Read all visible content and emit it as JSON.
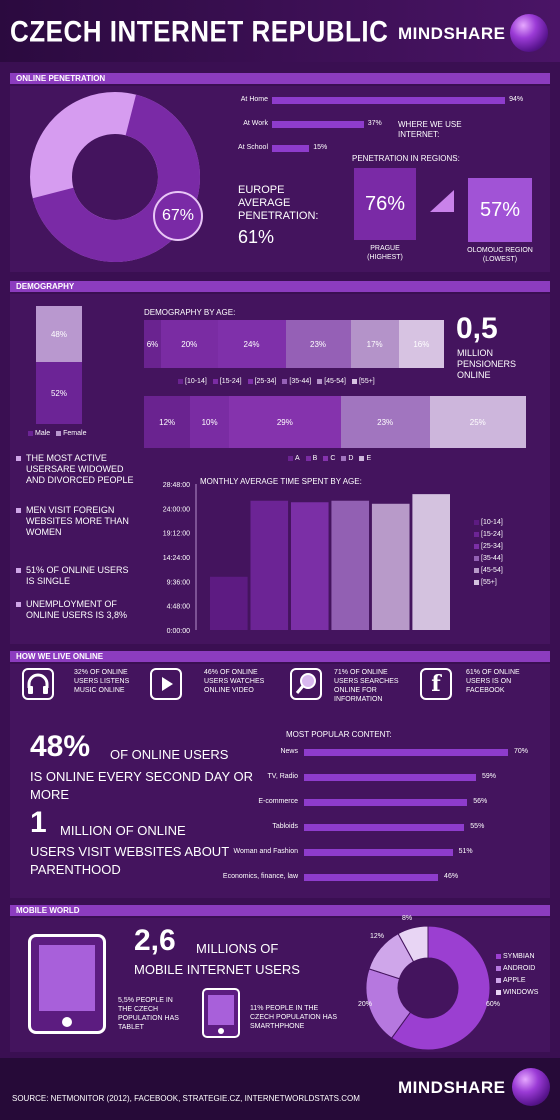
{
  "header": {
    "title": "CZECH INTERNET REPUBLIC",
    "brand": "MINDSHARE"
  },
  "online_penetration": {
    "section": "ONLINE PENETRATION",
    "donut_value": "67%",
    "donut_fraction": 0.67,
    "usage": [
      {
        "label": "At Home",
        "value": 94,
        "text": "94%"
      },
      {
        "label": "At Work",
        "value": 37,
        "text": "37%"
      },
      {
        "label": "At School",
        "value": 15,
        "text": "15%"
      }
    ],
    "where_label": "WHERE WE USE INTERNET:",
    "europe_label": "EUROPE AVERAGE PENETRATION:",
    "europe_value": "61%",
    "regions_label": "PENETRATION IN REGIONS:",
    "prague_value": "76%",
    "prague_label": "PRAGUE (HIGHEST)",
    "olomouc_value": "57%",
    "olomouc_label": "OLOMOUC REGION (LOWEST)"
  },
  "demography": {
    "section": "DEMOGRAPHY",
    "gender": {
      "male": "52%",
      "female": "48%",
      "male_value": 52,
      "female_value": 48,
      "legend_male": "Male",
      "legend_female": "Female"
    },
    "age_label": "DEMOGRAPHY BY AGE:",
    "age_segments": [
      {
        "label": "6%",
        "value": 6,
        "color": "#6a2390"
      },
      {
        "label": "20%",
        "value": 20,
        "color": "#7a2ca3"
      },
      {
        "label": "24%",
        "value": 24,
        "color": "#7f30aa"
      },
      {
        "label": "23%",
        "value": 23,
        "color": "#9560b6"
      },
      {
        "label": "17%",
        "value": 17,
        "color": "#b493c9"
      },
      {
        "label": "16%",
        "value": 16,
        "color": "#d7c3e2"
      }
    ],
    "age_legend": [
      "[10-14]",
      "[15-24]",
      "[25-34]",
      "[35-44]",
      "[45-54]",
      "[55+]"
    ],
    "edu_segments": [
      {
        "label": "12%",
        "value": 12,
        "color": "#6a2390"
      },
      {
        "label": "10%",
        "value": 10,
        "color": "#7a2ca3"
      },
      {
        "label": "29%",
        "value": 29,
        "color": "#8533ad"
      },
      {
        "label": "23%",
        "value": 23,
        "color": "#a175bf"
      },
      {
        "label": "25%",
        "value": 25,
        "color": "#cdb6dc"
      }
    ],
    "edu_legend": [
      "A",
      "B",
      "C",
      "D",
      "E"
    ],
    "pensioners_value": "0,5",
    "pensioners_label": "MILLION PENSIONERS ONLINE",
    "bullets": [
      "THE MOST ACTIVE USERSARE WIDOWED AND DIVORCED PEOPLE",
      "MEN VISIT FOREIGN WEBSITES MORE THAN WOMEN",
      "51% OF ONLINE USERS IS SINGLE",
      "UNEMPLOYMENT OF ONLINE USERS IS 3,8%"
    ]
  },
  "chart_data": {
    "type": "bar",
    "title": "MONTHLY AVERAGE TIME SPENT BY AGE:",
    "categories": [
      "[10-14]",
      "[15-24]",
      "[25-34]",
      "[35-44]",
      "[45-54]",
      "[55+]"
    ],
    "values_hours": [
      10.5,
      25.5,
      25.2,
      25.5,
      24.9,
      26.8
    ],
    "yticks": [
      "28:48:00",
      "24:00:00",
      "19:12:00",
      "14:24:00",
      "9:36:00",
      "4:48:00",
      "0:00:00"
    ],
    "ylim_hours": [
      0,
      28.8
    ],
    "colors": [
      "#5d1b82",
      "#6c2495",
      "#7b2fa6",
      "#9260b3",
      "#b89ac9",
      "#d4c2df"
    ],
    "legend_placement": "right"
  },
  "how_we_live": {
    "section": "HOW WE LIVE ONLINE",
    "stats": [
      {
        "icon": "headphones-icon",
        "text": "32% OF ONLINE USERS LISTENS MUSIC ONLINE"
      },
      {
        "icon": "play-icon",
        "text": "46% OF ONLINE USERS WATCHES ONLINE VIDEO"
      },
      {
        "icon": "magnifier-icon",
        "text": "71% OF ONLINE USERS SEARCHES ONLINE FOR INFORMATION"
      },
      {
        "icon": "facebook-icon",
        "text": "61% OF ONLINE USERS IS ON FACEBOOK"
      }
    ],
    "big1_value": "48%",
    "big1_text_a": "OF ONLINE USERS",
    "big1_text_b": "IS ONLINE EVERY SECOND DAY OR MORE",
    "big2_value": "1",
    "big2_text_a": "MILLION OF ONLINE",
    "big2_text_b": "USERS VISIT WEBSITES ABOUT PARENTHOOD",
    "content_title": "MOST POPULAR  CONTENT:",
    "content": [
      {
        "label": "News",
        "value": 70,
        "text": "70%"
      },
      {
        "label": "TV, Radio",
        "value": 59,
        "text": "59%"
      },
      {
        "label": "E-commerce",
        "value": 56,
        "text": "56%"
      },
      {
        "label": "Tabloids",
        "value": 55,
        "text": "55%"
      },
      {
        "label": "Woman and Fashion",
        "value": 51,
        "text": "51%"
      },
      {
        "label": "Economics, finance, law",
        "value": 46,
        "text": "46%"
      }
    ]
  },
  "mobile": {
    "section": "MOBILE WORLD",
    "big_value": "2,6",
    "big_text_a": "MILLIONS OF",
    "big_text_b": "MOBILE INTERNET USERS",
    "tablet_text": "5,5% PEOPLE IN THE CZECH POPULATION HAS TABLET",
    "phone_text": "11% PEOPLE IN THE CZECH POPULATION HAS SMARTHPHONE",
    "pie": [
      {
        "name": "SYMBIAN",
        "value": 60,
        "text": "60%",
        "color": "#9b3fd1"
      },
      {
        "name": "ANDROID",
        "value": 20,
        "text": "20%",
        "color": "#b678df"
      },
      {
        "name": "APPLE",
        "value": 12,
        "text": "12%",
        "color": "#cfa6ea"
      },
      {
        "name": "WINDOWS",
        "value": 8,
        "text": "8%",
        "color": "#e8d5f4"
      }
    ]
  },
  "footer": {
    "source": "SOURCE: NETMONITOR (2012), FACEBOOK, STRATEGIE.CZ, INTERNETWORLDSTATS.COM",
    "brand": "MINDSHARE"
  }
}
